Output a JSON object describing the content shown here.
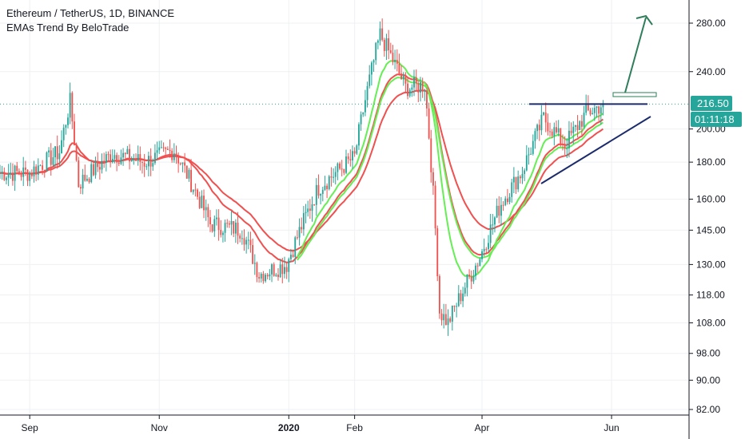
{
  "legend": {
    "title": "Ethereum / TetherUS, 1D, BINANCE",
    "indicator": "EMAs Trend By BeloTrade"
  },
  "price_label": "216.50",
  "countdown": "01:11:18",
  "colors": {
    "up": "#26a69a",
    "down": "#ef5350",
    "ema_fast_red": "#f0504f",
    "ema_green": "#66ee55",
    "trendline": "#1b2b6b",
    "arrow": "#2e7d5b",
    "price_tag": "#26a69a"
  },
  "chart_data": {
    "type": "candlestick",
    "title": "Ethereum / TetherUS, 1D, BINANCE",
    "y_scale": "log",
    "ylim": [
      80,
      300
    ],
    "y_ticks": [
      "280.00",
      "240.00",
      "200.00",
      "180.00",
      "160.00",
      "145.00",
      "130.00",
      "118.00",
      "108.00",
      "98.00",
      "90.00",
      "82.00"
    ],
    "x_ticks": [
      "Sep",
      "Nov",
      "2020",
      "Feb",
      "Apr",
      "Jun"
    ],
    "last_price": 216.5,
    "close_series_approx": [
      {
        "date": "2019-09-01",
        "close": 174
      },
      {
        "date": "2019-09-15",
        "close": 186
      },
      {
        "date": "2019-09-20",
        "close": 218
      },
      {
        "date": "2019-09-24",
        "close": 168
      },
      {
        "date": "2019-10-10",
        "close": 185
      },
      {
        "date": "2019-10-25",
        "close": 180
      },
      {
        "date": "2019-11-08",
        "close": 187
      },
      {
        "date": "2019-11-25",
        "close": 148
      },
      {
        "date": "2019-12-10",
        "close": 145
      },
      {
        "date": "2019-12-18",
        "close": 126
      },
      {
        "date": "2019-12-31",
        "close": 130
      },
      {
        "date": "2020-01-15",
        "close": 166
      },
      {
        "date": "2020-02-01",
        "close": 183
      },
      {
        "date": "2020-02-13",
        "close": 270
      },
      {
        "date": "2020-02-25",
        "close": 228
      },
      {
        "date": "2020-03-05",
        "close": 230
      },
      {
        "date": "2020-03-12",
        "close": 112
      },
      {
        "date": "2020-03-16",
        "close": 108
      },
      {
        "date": "2020-03-31",
        "close": 133
      },
      {
        "date": "2020-04-10",
        "close": 158
      },
      {
        "date": "2020-04-20",
        "close": 175
      },
      {
        "date": "2020-04-30",
        "close": 207
      },
      {
        "date": "2020-05-10",
        "close": 190
      },
      {
        "date": "2020-05-20",
        "close": 210
      },
      {
        "date": "2020-05-28",
        "close": 216.5
      }
    ]
  }
}
